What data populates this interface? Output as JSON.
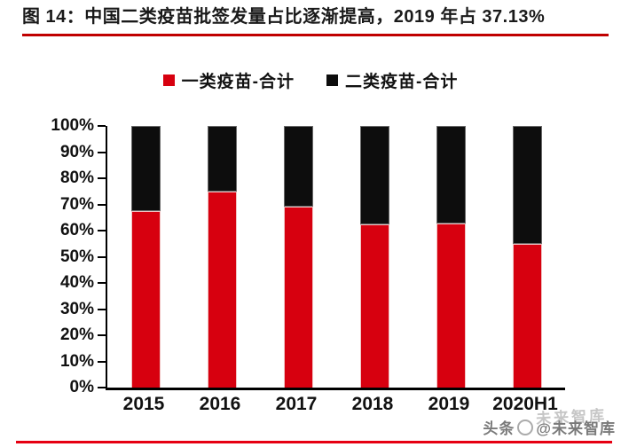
{
  "figure": {
    "title": "图 14：中国二类疫苗批签发量占比逐渐提高，2019 年占 37.13%"
  },
  "watermark": {
    "brand": "头条",
    "handle": "@未来智库",
    "ghost": "未来智库"
  },
  "colors": {
    "bar_red": "#d7000f",
    "bar_black": "#0d0d0d",
    "title_underline": "#c00000",
    "bottom_rule": "#e60012",
    "axis": "#000000"
  },
  "chart_data": {
    "type": "bar",
    "stacked": true,
    "stack_unit": "percent",
    "title": "中国二类疫苗批签发量占比逐渐提高，2019 年占 37.13%",
    "categories": [
      "2015",
      "2016",
      "2017",
      "2018",
      "2019",
      "2020H1"
    ],
    "series": [
      {
        "name": "一类疫苗-合计",
        "color": "#d7000f",
        "values": [
          67.6,
          74.9,
          69.0,
          62.5,
          62.87,
          55.0
        ]
      },
      {
        "name": "二类疫苗-合计",
        "color": "#0d0d0d",
        "values": [
          32.4,
          25.1,
          31.0,
          37.5,
          37.13,
          45.0
        ]
      }
    ],
    "xlabel": "",
    "ylabel": "",
    "ylim": [
      0,
      100
    ],
    "ytick_step": 10,
    "ytick_labels": [
      "0%",
      "10%",
      "20%",
      "30%",
      "40%",
      "50%",
      "60%",
      "70%",
      "80%",
      "90%",
      "100%"
    ],
    "legend_position": "top",
    "grid": false
  }
}
